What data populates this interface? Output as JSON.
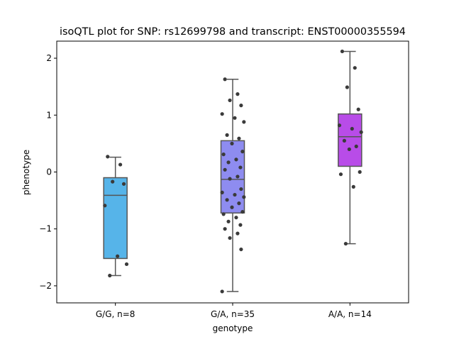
{
  "chart_data": {
    "type": "box",
    "title": "isoQTL plot for SNP: rs12699798 and transcript: ENST00000355594",
    "xlabel": "genotype",
    "ylabel": "phenotype",
    "ylim": [
      -2.3,
      2.3
    ],
    "yticks": [
      -2,
      -1,
      0,
      1,
      2
    ],
    "ytick_labels": [
      "−2",
      "−1",
      "0",
      "1",
      "2"
    ],
    "grid": false,
    "categories": [
      "G/G, n=8",
      "G/A, n=35",
      "A/A, n=14"
    ],
    "boxes": [
      {
        "category": "G/G, n=8",
        "color": "#56b4e9",
        "q1": -1.52,
        "median": -0.41,
        "q3": -0.1,
        "whisker_low": -1.82,
        "whisker_high": 0.26,
        "points": [
          0.27,
          0.13,
          -0.17,
          -0.21,
          -0.59,
          -1.48,
          -1.62,
          -1.82
        ]
      },
      {
        "category": "G/A, n=35",
        "color": "#8e8cf0",
        "q1": -0.72,
        "median": -0.13,
        "q3": 0.55,
        "whisker_low": -2.1,
        "whisker_high": 1.63,
        "points": [
          1.63,
          1.37,
          1.26,
          1.17,
          1.02,
          0.95,
          0.88,
          0.65,
          0.59,
          0.5,
          0.36,
          0.31,
          0.22,
          0.17,
          0.08,
          0.04,
          -0.08,
          -0.12,
          -0.3,
          -0.36,
          -0.4,
          -0.44,
          -0.49,
          -0.55,
          -0.62,
          -0.7,
          -0.74,
          -0.8,
          -0.87,
          -0.93,
          -1.0,
          -1.08,
          -1.16,
          -1.36,
          -2.1
        ]
      },
      {
        "category": "A/A, n=14",
        "color": "#b84ce8",
        "q1": 0.1,
        "median": 0.62,
        "q3": 1.02,
        "whisker_low": -1.26,
        "whisker_high": 2.12,
        "points": [
          2.12,
          1.83,
          1.49,
          1.1,
          0.82,
          0.76,
          0.7,
          0.55,
          0.45,
          0.4,
          0.0,
          -0.04,
          -0.26,
          -1.26
        ]
      }
    ]
  }
}
